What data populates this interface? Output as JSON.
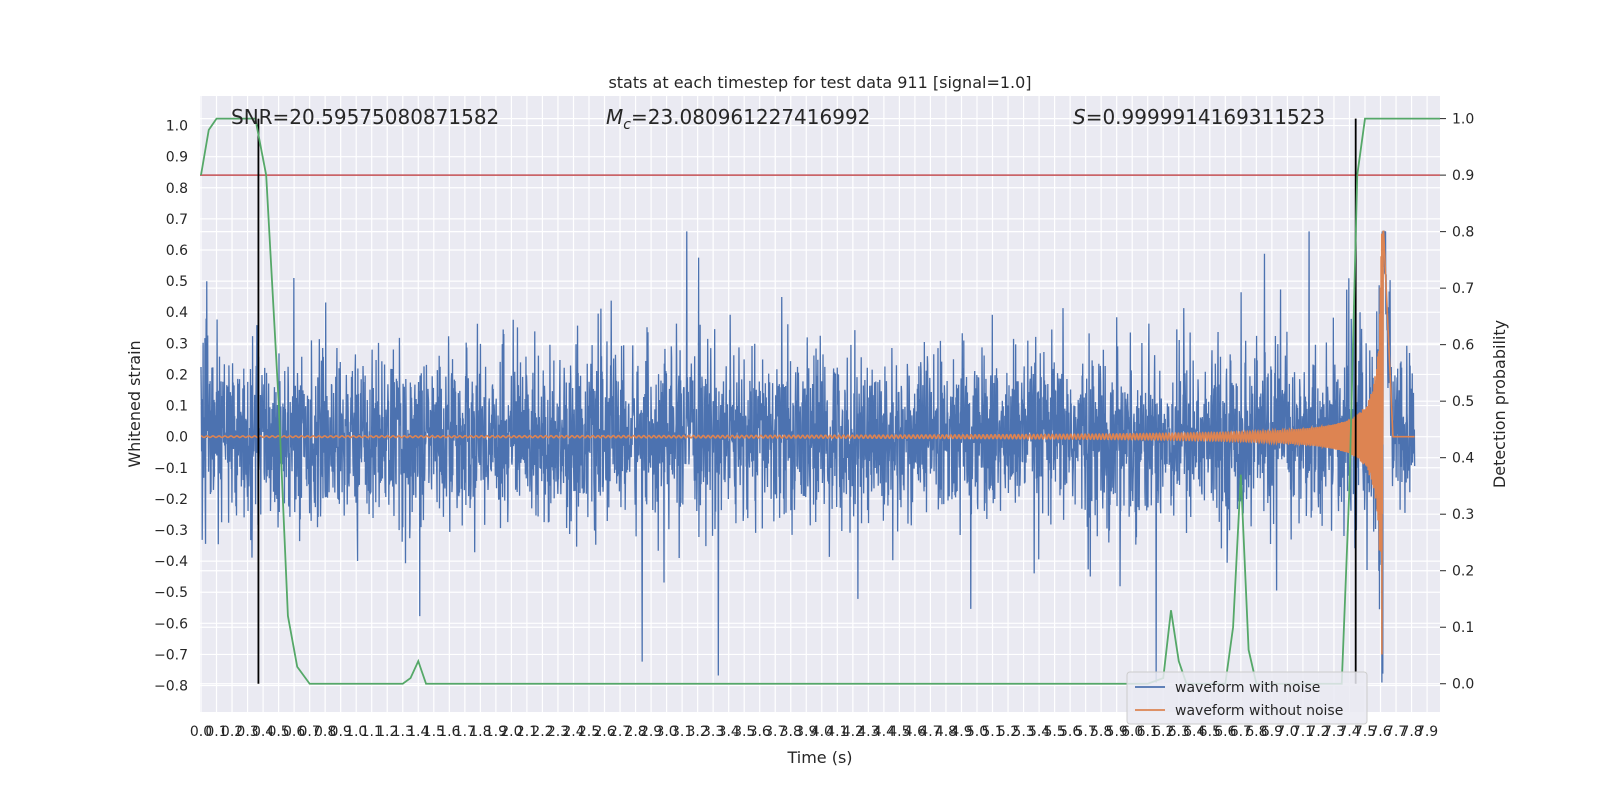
{
  "chart_data": {
    "type": "line",
    "title": "stats at each timestep for test data 911 [signal=1.0]",
    "xlabel": "Time (s)",
    "ylabel": "Whitened strain",
    "y2label": "Detection probability",
    "xlim": [
      0.0,
      8.0
    ],
    "ylim": [
      -0.885,
      1.095
    ],
    "y2lim": [
      -0.05,
      1.04
    ],
    "grid": true,
    "legend_position": "bottom-right",
    "x_ticks": [
      "0.0",
      "0.1",
      "0.2",
      "0.3",
      "0.4",
      "0.5",
      "0.6",
      "0.7",
      "0.8",
      "0.9",
      "1.0",
      "1.1",
      "1.2",
      "1.3",
      "1.4",
      "1.5",
      "1.6",
      "1.7",
      "1.8",
      "1.9",
      "2.0",
      "2.1",
      "2.2",
      "2.3",
      "2.4",
      "2.5",
      "2.6",
      "2.7",
      "2.8",
      "2.9",
      "3.0",
      "3.1",
      "3.2",
      "3.3",
      "3.4",
      "3.5",
      "3.6",
      "3.7",
      "3.8",
      "3.9",
      "4.0",
      "4.1",
      "4.2",
      "4.3",
      "4.4",
      "4.5",
      "4.6",
      "4.7",
      "4.8",
      "4.9",
      "5.0",
      "5.1",
      "5.2",
      "5.3",
      "5.4",
      "5.5",
      "5.6",
      "5.7",
      "5.8",
      "5.9",
      "6.0",
      "6.1",
      "6.2",
      "6.3",
      "6.4",
      "6.5",
      "6.6",
      "6.7",
      "6.8",
      "6.9",
      "7.0",
      "7.1",
      "7.2",
      "7.3",
      "7.4",
      "7.5",
      "7.6",
      "7.7",
      "7.8",
      "7.9"
    ],
    "y_ticks": [
      "-0.8",
      "-0.7",
      "-0.6",
      "-0.5",
      "-0.4",
      "-0.3",
      "-0.2",
      "-0.1",
      "0.0",
      "0.1",
      "0.2",
      "0.3",
      "0.4",
      "0.5",
      "0.6",
      "0.7",
      "0.8",
      "0.9",
      "1.0"
    ],
    "y2_ticks": [
      "0.0",
      "0.1",
      "0.2",
      "0.3",
      "0.4",
      "0.5",
      "0.6",
      "0.7",
      "0.8",
      "0.9",
      "1.0"
    ],
    "annotations": {
      "snr": "SNR=20.59575080871582",
      "mc": "=23.080961227416992",
      "s": "=0.9999914169311523"
    },
    "threshold": {
      "value": 0.9,
      "color": "#c44e52"
    },
    "vlines_x": [
      0.37,
      7.44
    ],
    "series": [
      {
        "name": "waveform with noise",
        "color": "#4c72b0",
        "description_stats": {
          "amp_typical": 0.28,
          "amp_peak": 0.66,
          "min": -0.79
        }
      },
      {
        "name": "waveform without noise",
        "color": "#dd8452",
        "chirp_start_amp": 0.005,
        "chirp_end_amp": 0.72,
        "merger_time": 7.62
      },
      {
        "color": "#55a868",
        "x": [
          0.0,
          0.05,
          0.1,
          0.2,
          0.3,
          0.35,
          0.42,
          0.5,
          0.56,
          0.62,
          0.7,
          0.8,
          0.9,
          1.0,
          1.1,
          1.2,
          1.25,
          1.3,
          1.35,
          1.4,
          1.45,
          1.5,
          2.0,
          3.0,
          4.0,
          5.0,
          6.0,
          6.05,
          6.1,
          6.2,
          6.25,
          6.3,
          6.35,
          6.4,
          6.45,
          6.5,
          6.55,
          6.6,
          6.65,
          6.7,
          6.75,
          6.8,
          6.85,
          6.9,
          7.0,
          7.1,
          7.2,
          7.25,
          7.3,
          7.35,
          7.4,
          7.45,
          7.5,
          7.55,
          7.6,
          7.65,
          7.7,
          8.0
        ],
        "values": [
          0.9,
          0.98,
          1.0,
          1.0,
          1.0,
          1.0,
          0.9,
          0.5,
          0.12,
          0.03,
          0.0,
          0.0,
          0.0,
          0.0,
          0.0,
          0.0,
          0.0,
          0.0,
          0.01,
          0.04,
          0.0,
          0.0,
          0.0,
          0.0,
          0.0,
          0.0,
          0.0,
          0.0,
          0.0,
          0.01,
          0.13,
          0.04,
          0.0,
          0.0,
          0.0,
          0.0,
          0.0,
          0.0,
          0.1,
          0.37,
          0.06,
          0.0,
          0.0,
          0.0,
          0.0,
          0.0,
          0.0,
          0.0,
          0.0,
          0.0,
          0.35,
          0.9,
          1.0,
          1.0,
          1.0,
          1.0,
          1.0,
          1.0
        ]
      }
    ]
  }
}
